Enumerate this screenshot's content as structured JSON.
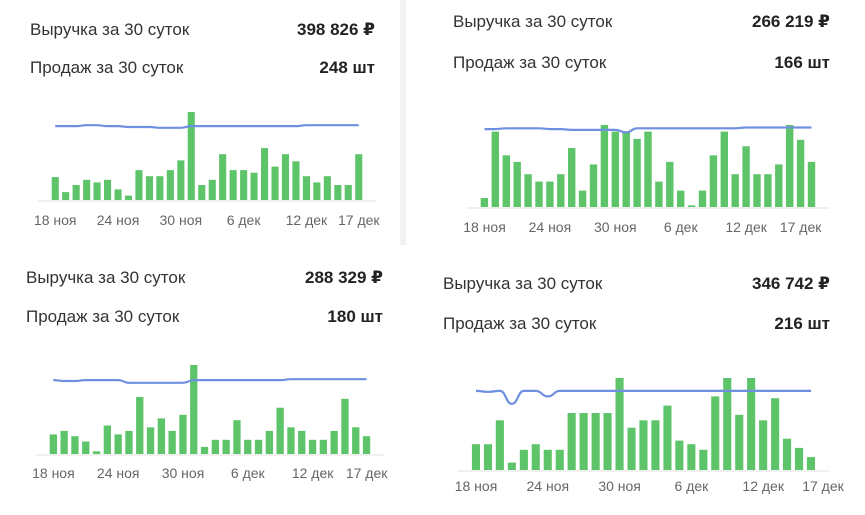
{
  "colors": {
    "bar": "#5ec46a",
    "line": "#6f8fe0",
    "axis": "#e0e0e0",
    "tick_text": "#666666"
  },
  "panels": [
    {
      "revenue_label": "Выручка за 30 суток",
      "revenue_value": "398 826 ₽",
      "sales_label": "Продаж за 30 суток",
      "sales_value": "248 шт"
    },
    {
      "revenue_label": "Выручка за 30 суток",
      "revenue_value": "266 219 ₽",
      "sales_label": "Продаж за 30 суток",
      "sales_value": "166 шт"
    },
    {
      "revenue_label": "Выручка за 30 суток",
      "revenue_value": "288 329 ₽",
      "sales_label": "Продаж за 30 суток",
      "sales_value": "180 шт"
    },
    {
      "revenue_label": "Выручка за 30 суток",
      "revenue_value": "346 742 ₽",
      "sales_label": "Продаж за 30 суток",
      "sales_value": "216 шт"
    }
  ],
  "chart_data": [
    {
      "type": "bar",
      "title": "",
      "x_ticks": [
        "18 ноя",
        "24 ноя",
        "30 ноя",
        "6 дек",
        "12 дек",
        "17 дек"
      ],
      "tick_positions": [
        0,
        6,
        12,
        18,
        24,
        29
      ],
      "series": [
        {
          "kind": "bar",
          "values": [
            26,
            9,
            17,
            23,
            20,
            23,
            12,
            5,
            34,
            27,
            27,
            34,
            45,
            100,
            17,
            23,
            52,
            34,
            34,
            31,
            59,
            38,
            52,
            44,
            27,
            20,
            27,
            17,
            17,
            52
          ]
        },
        {
          "kind": "line",
          "values": [
            84,
            84,
            84,
            85,
            85,
            84,
            84,
            83,
            83,
            83,
            82,
            82,
            82,
            84,
            84,
            84,
            84,
            84,
            84,
            84,
            84,
            84,
            84,
            84,
            85,
            85,
            85,
            85,
            85,
            85
          ]
        }
      ],
      "ylim": [
        0,
        100
      ]
    },
    {
      "type": "bar",
      "title": "",
      "x_ticks": [
        "18 ноя",
        "24 ноя",
        "30 ноя",
        "6 дек",
        "12 дек",
        "17 дек"
      ],
      "tick_positions": [
        0,
        6,
        12,
        18,
        24,
        29
      ],
      "series": [
        {
          "kind": "bar",
          "values": [
            11,
            92,
            63,
            55,
            40,
            31,
            31,
            40,
            72,
            20,
            52,
            100,
            92,
            92,
            83,
            92,
            31,
            55,
            20,
            2,
            20,
            63,
            92,
            40,
            74,
            40,
            40,
            52,
            100,
            82,
            55
          ]
        },
        {
          "kind": "line",
          "values": [
            95,
            95,
            96,
            96,
            96,
            96,
            95,
            95,
            94,
            94,
            94,
            94,
            94,
            91,
            96,
            96,
            96,
            96,
            96,
            96,
            96,
            96,
            96,
            96,
            97,
            97,
            97,
            97,
            97,
            97,
            97
          ]
        }
      ],
      "ylim": [
        0,
        100
      ]
    },
    {
      "type": "bar",
      "title": "",
      "x_ticks": [
        "18 ноя",
        "24 ноя",
        "30 ноя",
        "6 дек",
        "12 дек",
        "17 дек"
      ],
      "tick_positions": [
        0,
        6,
        12,
        18,
        24,
        29
      ],
      "series": [
        {
          "kind": "bar",
          "values": [
            22,
            26,
            20,
            14,
            3,
            32,
            22,
            26,
            64,
            30,
            40,
            26,
            44,
            100,
            8,
            16,
            16,
            38,
            16,
            16,
            26,
            52,
            30,
            26,
            16,
            16,
            26,
            62,
            30,
            20
          ]
        },
        {
          "kind": "line",
          "values": [
            83,
            82,
            82,
            83,
            83,
            83,
            83,
            80,
            80,
            80,
            80,
            80,
            80,
            83,
            83,
            83,
            83,
            83,
            83,
            83,
            83,
            83,
            84,
            84,
            84,
            84,
            84,
            84,
            84,
            84
          ]
        }
      ],
      "ylim": [
        0,
        100
      ]
    },
    {
      "type": "bar",
      "title": "",
      "x_ticks": [
        "18 ноя",
        "24 ноя",
        "30 ноя",
        "6 дек",
        "12 дек",
        "17 дек"
      ],
      "tick_positions": [
        0,
        6,
        12,
        18,
        24,
        29
      ],
      "series": [
        {
          "kind": "bar",
          "values": [
            28,
            28,
            54,
            8,
            22,
            28,
            22,
            22,
            62,
            62,
            62,
            62,
            100,
            46,
            54,
            54,
            70,
            32,
            28,
            22,
            80,
            100,
            60,
            100,
            54,
            78,
            34,
            24,
            14
          ]
        },
        {
          "kind": "line",
          "values": [
            86,
            85,
            86,
            72,
            86,
            86,
            80,
            86,
            86,
            86,
            86,
            86,
            86,
            86,
            86,
            86,
            86,
            86,
            86,
            86,
            86,
            86,
            86,
            86,
            86,
            86,
            86,
            86,
            86
          ]
        }
      ],
      "ylim": [
        0,
        100
      ]
    }
  ]
}
